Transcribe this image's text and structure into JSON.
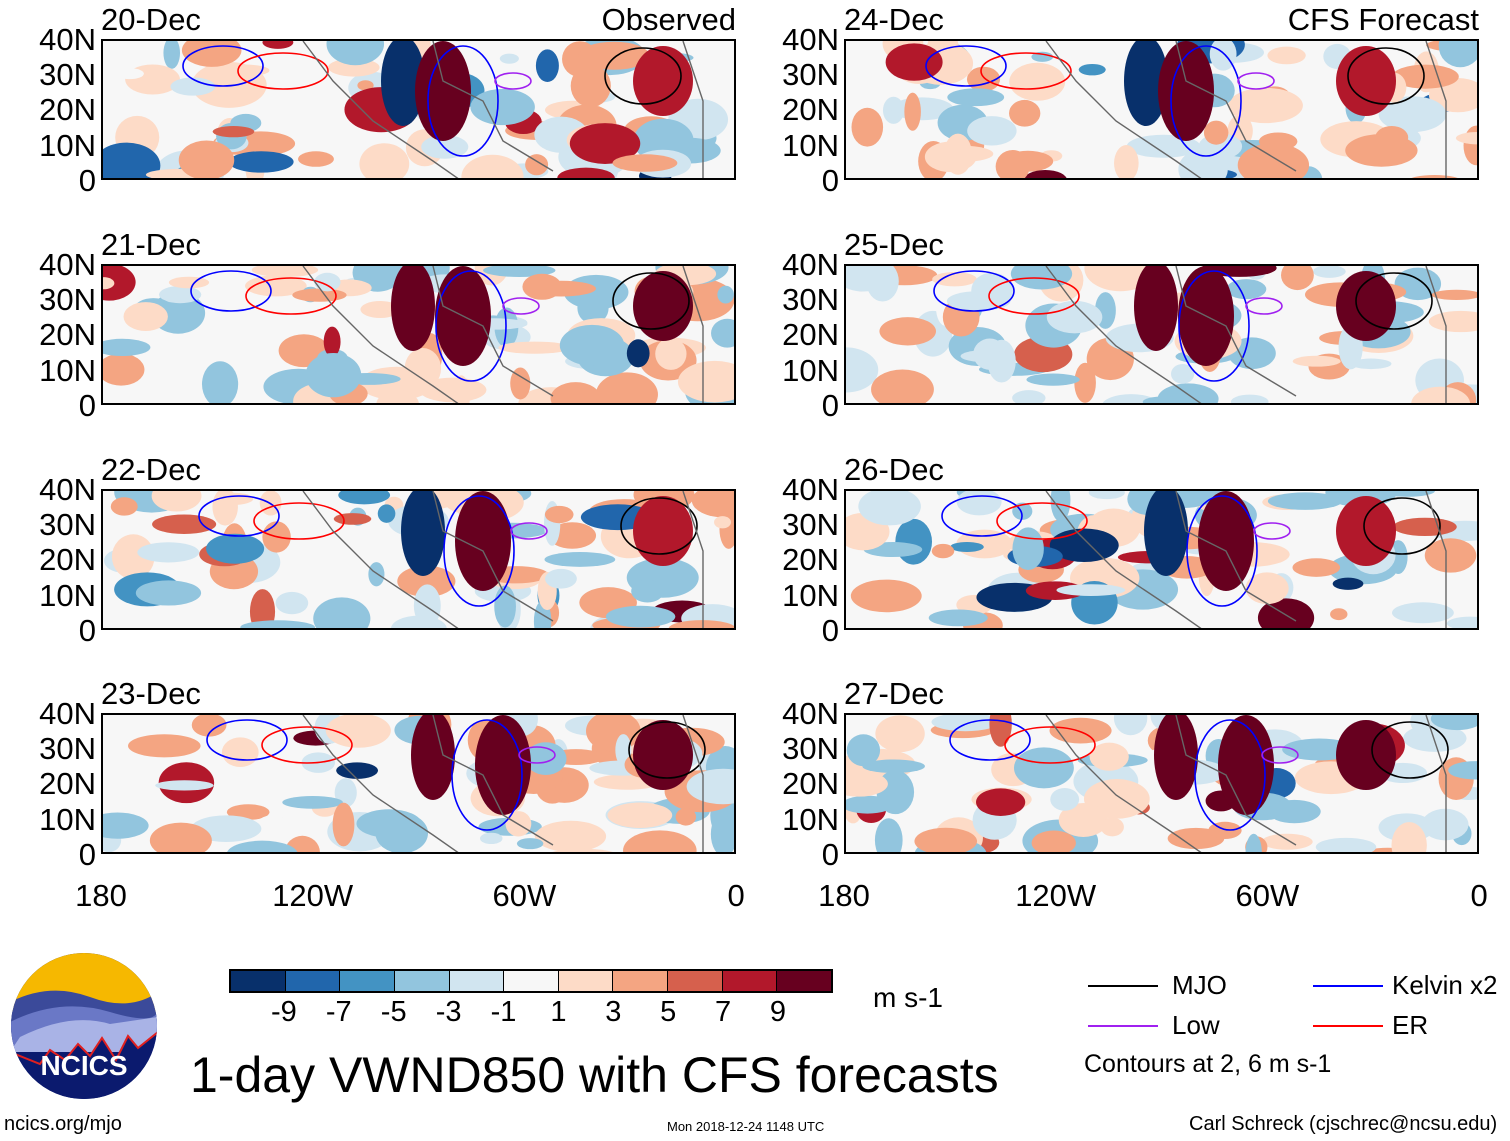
{
  "panels": {
    "left": [
      {
        "date": "20-Dec",
        "tag": "Observed"
      },
      {
        "date": "21-Dec"
      },
      {
        "date": "22-Dec"
      },
      {
        "date": "23-Dec"
      }
    ],
    "right": [
      {
        "date": "24-Dec",
        "tag": "CFS Forecast"
      },
      {
        "date": "25-Dec"
      },
      {
        "date": "26-Dec"
      },
      {
        "date": "27-Dec"
      }
    ]
  },
  "y_ticks": [
    "40N",
    "30N",
    "20N",
    "10N",
    "0"
  ],
  "x_ticks": [
    "180",
    "120W",
    "60W",
    "0"
  ],
  "colorbar": {
    "colors": [
      "#08306b",
      "#2166ac",
      "#4393c3",
      "#92c5de",
      "#d1e5f0",
      "#f7f7f7",
      "#fddbc7",
      "#f4a582",
      "#d6604d",
      "#b2182b",
      "#67001f"
    ],
    "labels": [
      "-9",
      "-7",
      "-5",
      "-3",
      "-1",
      "1",
      "3",
      "5",
      "7",
      "9"
    ],
    "units": "m s-1"
  },
  "legend": {
    "items": [
      {
        "label": "MJO",
        "color": "#000000"
      },
      {
        "label": "Low",
        "color": "#a020f0"
      },
      {
        "label": "Kelvin x2",
        "color": "#0000ff"
      },
      {
        "label": "ER",
        "color": "#ff0000"
      }
    ],
    "note": "Contours at 2, 6 m s-1"
  },
  "title": "1-day VWND850 with CFS forecasts",
  "logo_text": "NCICS",
  "footer": {
    "url": "ncics.org/mjo",
    "timestamp": "Mon 2018-12-24 1148 UTC",
    "credit": "Carl Schreck (cjschrec@ncsu.edu)"
  }
}
